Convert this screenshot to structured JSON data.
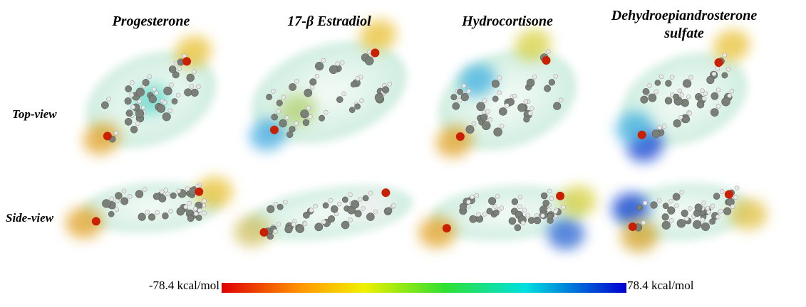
{
  "columns": [
    {
      "title": "Progesterone"
    },
    {
      "title": "17-β Estradiol"
    },
    {
      "title": "Hydrocortisone"
    },
    {
      "title": "Dehydroepiandrosterone sulfate"
    }
  ],
  "rows": [
    "Top-view",
    "Side-view"
  ],
  "color_scale": {
    "min_label": "-78.4 kcal/mol",
    "max_label": "78.4 kcal/mol"
  }
}
